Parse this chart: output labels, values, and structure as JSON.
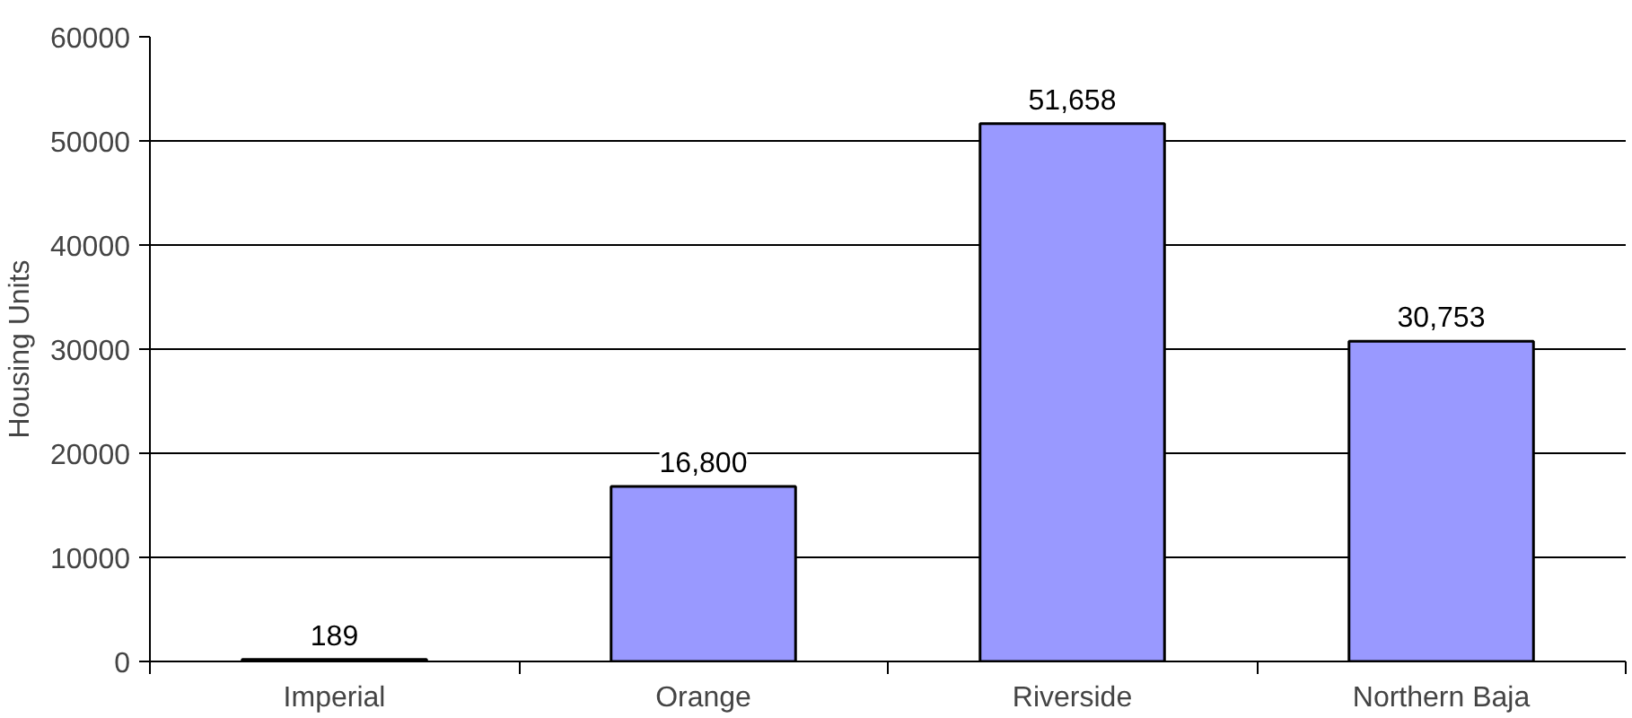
{
  "chart_data": {
    "type": "bar",
    "ylabel": "Housing Units",
    "categories": [
      "Imperial",
      "Orange",
      "Riverside",
      "Northern Baja"
    ],
    "values": [
      189,
      16800,
      51658,
      30753
    ],
    "value_labels": [
      "189",
      "16,800",
      "51,658",
      "30,753"
    ],
    "color": "#9999ff",
    "ylim": [
      0,
      60000
    ],
    "yticks": [
      0,
      10000,
      20000,
      30000,
      40000,
      50000,
      60000
    ],
    "grid": "y"
  }
}
